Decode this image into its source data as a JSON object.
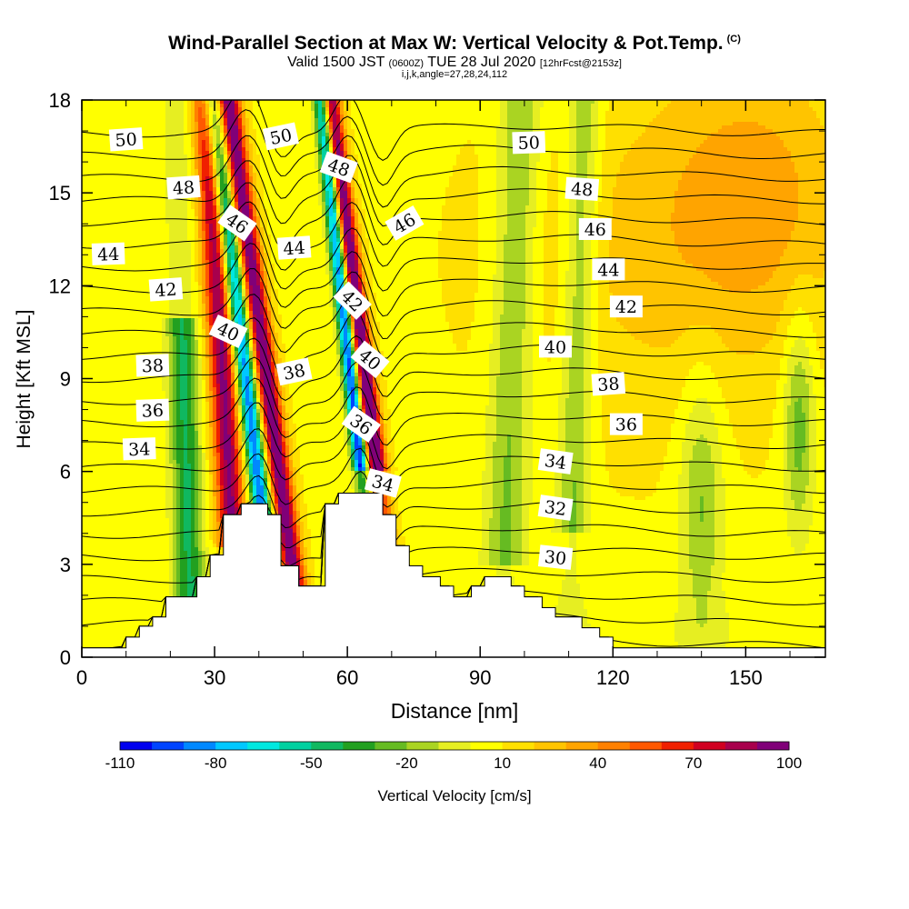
{
  "header": {
    "title": "Wind-Parallel Section at Max W: Vertical Velocity & Pot.Temp.",
    "title_tag": "(C)",
    "subtitle_main": "Valid 1500 JST",
    "subtitle_zulu": "(0600Z)",
    "subtitle_date": "TUE 28 Jul 2020",
    "subtitle_fcst": "[12hrFcst@2153z]",
    "subtitle2": "i,j,k,angle=27,28,24,112"
  },
  "chart_data": {
    "type": "heatmap",
    "xlabel": "Distance [nm]",
    "ylabel": "Height [Kft MSL]",
    "xlim": [
      0,
      168
    ],
    "ylim": [
      0,
      18
    ],
    "xticks": [
      0,
      30,
      60,
      90,
      120,
      150
    ],
    "yticks": [
      0,
      3,
      6,
      9,
      12,
      15,
      18
    ],
    "colorbar": {
      "label": "Vertical Velocity [cm/s]",
      "ticks": [
        -110,
        -80,
        -50,
        -20,
        10,
        40,
        70,
        100
      ],
      "levels": [
        -110,
        -100,
        -90,
        -80,
        -70,
        -60,
        -50,
        -40,
        -30,
        -20,
        -10,
        0,
        10,
        20,
        30,
        40,
        50,
        60,
        70,
        80,
        90,
        100
      ],
      "colors": [
        "#0000ee",
        "#0044ff",
        "#0088ff",
        "#00c8ff",
        "#00e8e0",
        "#00d0a0",
        "#10b860",
        "#22a020",
        "#66bb22",
        "#aad422",
        "#e6ee22",
        "#ffff00",
        "#ffe000",
        "#ffc400",
        "#ffa400",
        "#ff8000",
        "#ff5800",
        "#f02000",
        "#d00020",
        "#a8004c",
        "#800078"
      ]
    },
    "terrain_profile": [
      [
        0,
        0.3
      ],
      [
        10,
        0.3
      ],
      [
        10,
        0.65
      ],
      [
        13,
        0.65
      ],
      [
        13,
        1.0
      ],
      [
        16,
        1.0
      ],
      [
        16,
        1.3
      ],
      [
        19,
        1.3
      ],
      [
        19,
        1.95
      ],
      [
        22,
        1.95
      ],
      [
        22,
        1.95
      ],
      [
        26,
        1.95
      ],
      [
        26,
        2.6
      ],
      [
        29,
        2.6
      ],
      [
        29,
        3.3
      ],
      [
        32,
        3.3
      ],
      [
        32,
        4.6
      ],
      [
        36,
        4.6
      ],
      [
        36,
        4.95
      ],
      [
        42,
        4.95
      ],
      [
        42,
        4.6
      ],
      [
        45,
        4.6
      ],
      [
        45,
        2.95
      ],
      [
        49,
        2.95
      ],
      [
        49,
        2.3
      ],
      [
        55,
        2.3
      ],
      [
        55,
        4.95
      ],
      [
        58,
        4.95
      ],
      [
        58,
        5.3
      ],
      [
        68,
        5.3
      ],
      [
        68,
        4.6
      ],
      [
        71,
        4.6
      ],
      [
        71,
        3.6
      ],
      [
        74,
        3.6
      ],
      [
        74,
        2.95
      ],
      [
        77,
        2.95
      ],
      [
        77,
        2.6
      ],
      [
        81,
        2.6
      ],
      [
        81,
        2.3
      ],
      [
        84,
        2.3
      ],
      [
        84,
        1.95
      ],
      [
        88,
        1.95
      ],
      [
        88,
        2.3
      ],
      [
        91,
        2.3
      ],
      [
        91,
        2.6
      ],
      [
        97,
        2.6
      ],
      [
        97,
        2.3
      ],
      [
        100,
        2.3
      ],
      [
        100,
        1.95
      ],
      [
        104,
        1.95
      ],
      [
        104,
        1.6
      ],
      [
        107,
        1.6
      ],
      [
        107,
        1.3
      ],
      [
        113,
        1.3
      ],
      [
        113,
        0.95
      ],
      [
        117,
        0.95
      ],
      [
        117,
        0.65
      ],
      [
        120,
        0.65
      ],
      [
        120,
        0.3
      ],
      [
        168,
        0.3
      ]
    ],
    "isentrope_levels": [
      29,
      30,
      31,
      32,
      33,
      34,
      35,
      36,
      37,
      38,
      39,
      40,
      41,
      42,
      43,
      44,
      45,
      46,
      47,
      48,
      49,
      50,
      51,
      52,
      53
    ],
    "isentrope_labels": [
      {
        "value": "50",
        "x": 10,
        "y": 16.7,
        "rot": -4
      },
      {
        "value": "48",
        "x": 23,
        "y": 15.15,
        "rot": -4
      },
      {
        "value": "46",
        "x": 35,
        "y": 14.0,
        "rot": 35
      },
      {
        "value": "44",
        "x": 6,
        "y": 13.0,
        "rot": -2
      },
      {
        "value": "42",
        "x": 19,
        "y": 11.85,
        "rot": -4
      },
      {
        "value": "40",
        "x": 33,
        "y": 10.5,
        "rot": 25
      },
      {
        "value": "38",
        "x": 16,
        "y": 9.4,
        "rot": -2
      },
      {
        "value": "36",
        "x": 16,
        "y": 7.95,
        "rot": -2
      },
      {
        "value": "34",
        "x": 13,
        "y": 6.7,
        "rot": -2
      },
      {
        "value": "50",
        "x": 45,
        "y": 16.8,
        "rot": -12
      },
      {
        "value": "44",
        "x": 48,
        "y": 13.2,
        "rot": -4
      },
      {
        "value": "38",
        "x": 48,
        "y": 9.2,
        "rot": -12
      },
      {
        "value": "48",
        "x": 58,
        "y": 15.8,
        "rot": 20
      },
      {
        "value": "42",
        "x": 61,
        "y": 11.5,
        "rot": 45
      },
      {
        "value": "40",
        "x": 65,
        "y": 9.6,
        "rot": 40
      },
      {
        "value": "36",
        "x": 63,
        "y": 7.5,
        "rot": 35
      },
      {
        "value": "34",
        "x": 68,
        "y": 5.6,
        "rot": 15
      },
      {
        "value": "46",
        "x": 73,
        "y": 14.0,
        "rot": -30
      },
      {
        "value": "50",
        "x": 101,
        "y": 16.6,
        "rot": -2
      },
      {
        "value": "48",
        "x": 113,
        "y": 15.1,
        "rot": 4
      },
      {
        "value": "46",
        "x": 116,
        "y": 13.8,
        "rot": 0
      },
      {
        "value": "44",
        "x": 119,
        "y": 12.5,
        "rot": 0
      },
      {
        "value": "42",
        "x": 123,
        "y": 11.3,
        "rot": 0
      },
      {
        "value": "40",
        "x": 107,
        "y": 10.0,
        "rot": 0
      },
      {
        "value": "38",
        "x": 119,
        "y": 8.8,
        "rot": -4
      },
      {
        "value": "36",
        "x": 123,
        "y": 7.5,
        "rot": 0
      },
      {
        "value": "34",
        "x": 107,
        "y": 6.3,
        "rot": 8
      },
      {
        "value": "32",
        "x": 107,
        "y": 4.8,
        "rot": 8
      },
      {
        "value": "30",
        "x": 107,
        "y": 3.2,
        "rot": 6
      }
    ]
  }
}
